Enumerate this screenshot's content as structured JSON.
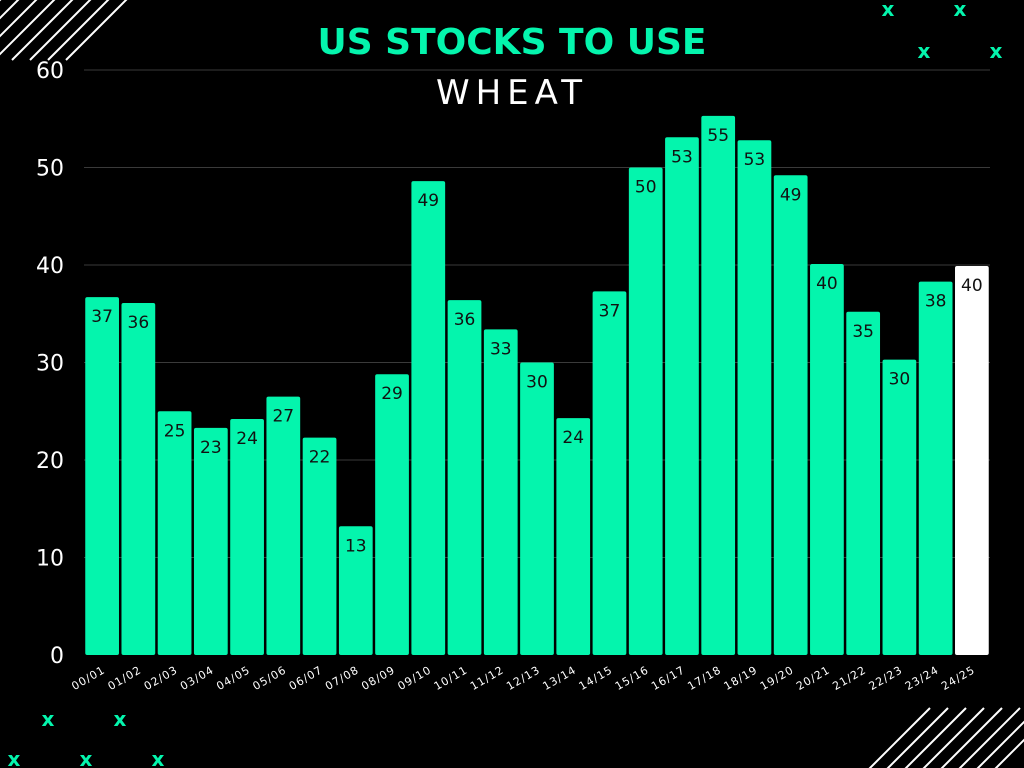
{
  "chart_data": {
    "type": "bar",
    "title": "US STOCKS TO USE",
    "subtitle": "WHEAT",
    "xlabel": "",
    "ylabel": "",
    "ylim": [
      0,
      60
    ],
    "yticks": [
      0,
      10,
      20,
      30,
      40,
      50,
      60
    ],
    "grid": true,
    "categories": [
      "00/01",
      "01/02",
      "02/03",
      "03/04",
      "04/05",
      "05/06",
      "06/07",
      "07/08",
      "08/09",
      "09/10",
      "10/11",
      "11/12",
      "12/13",
      "13/14",
      "14/15",
      "15/16",
      "16/17",
      "17/18",
      "18/19",
      "19/20",
      "20/21",
      "21/22",
      "22/23",
      "23/24",
      "24/25"
    ],
    "values": [
      36.7,
      36.1,
      25,
      23.3,
      24.2,
      26.5,
      22.3,
      13.2,
      28.8,
      48.6,
      36.4,
      33.4,
      30,
      24.3,
      37.3,
      50,
      53.1,
      55.3,
      52.8,
      49.2,
      40.1,
      35.2,
      30.3,
      38.3,
      39.9
    ],
    "data_labels": [
      "37",
      "36",
      "25",
      "23",
      "24",
      "27",
      "22",
      "13",
      "29",
      "49",
      "36",
      "33",
      "30",
      "24",
      "37",
      "50",
      "53",
      "55",
      "53",
      "49",
      "40",
      "35",
      "30",
      "38",
      "40"
    ],
    "highlight_index": 24
  },
  "colors": {
    "background": "#000000",
    "bar": "#04f5ad",
    "bar_highlight": "#ffffff",
    "text": "#ffffff",
    "title": "#04f5ad",
    "grid": "#3a3a3a",
    "decor": "#ffffff"
  },
  "decorations": {
    "mark_glyph": "x"
  }
}
